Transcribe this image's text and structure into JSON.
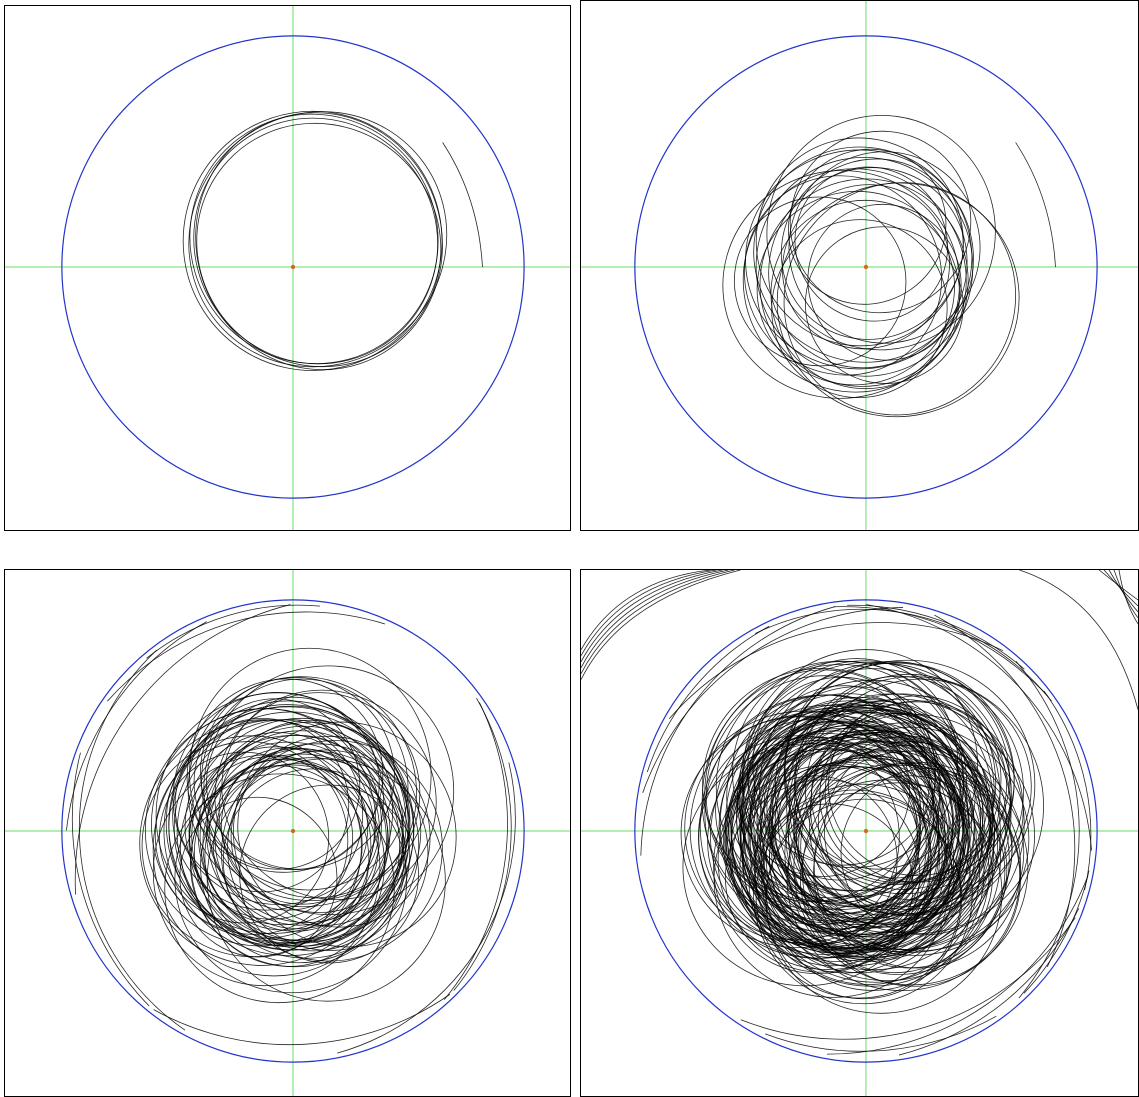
{
  "colors": {
    "boundary_circle": "#2233cc",
    "axes": "#66dd66",
    "trajectory": "#000000",
    "center_point": "#d46a1a",
    "background": "#ffffff"
  },
  "panels": [
    {
      "id": "panel-1",
      "description_key": "trajectory-few-loops",
      "boundary": {
        "cx": 0.0,
        "cy": 0.0,
        "r": 1.0
      },
      "loops": 6,
      "center_offset": {
        "x": 0.1,
        "y": -0.05
      },
      "loop_radius": 0.58,
      "escape_loops": 0
    },
    {
      "id": "panel-2",
      "description_key": "trajectory-medium-loops",
      "boundary": {
        "cx": 0.0,
        "cy": 0.0,
        "r": 1.0
      },
      "loops": 24,
      "center_offset": {
        "x": 0.0,
        "y": 0.0
      },
      "loop_radius": 0.62,
      "escape_loops": 0
    },
    {
      "id": "panel-3",
      "description_key": "trajectory-many-loops",
      "boundary": {
        "cx": 0.0,
        "cy": 0.0,
        "r": 1.0
      },
      "loops": 60,
      "center_offset": {
        "x": 0.0,
        "y": 0.0
      },
      "loop_radius": 0.66,
      "escape_loops": 10
    },
    {
      "id": "panel-4",
      "description_key": "trajectory-dense-loops",
      "boundary": {
        "cx": 0.0,
        "cy": 0.0,
        "r": 1.0
      },
      "loops": 140,
      "center_offset": {
        "x": 0.0,
        "y": 0.0
      },
      "loop_radius": 0.68,
      "escape_loops": 16
    }
  ]
}
